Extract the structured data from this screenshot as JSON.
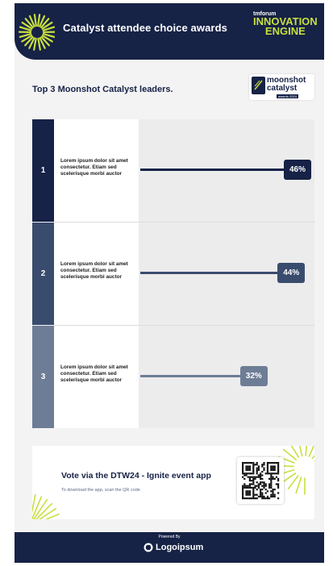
{
  "header": {
    "title": "Catalyst attendee choice awards",
    "brand_small": "tmforum",
    "brand_line1": "INNOVATION",
    "brand_line2": "ENGINE",
    "icon": "starburst-icon"
  },
  "section": {
    "title": "Top 3 Moonshot Catalyst leaders.",
    "badge_line1": "moonshot",
    "badge_line2": "catalyst",
    "badge_line3": "awards 2024"
  },
  "leaders": [
    {
      "rank": "1",
      "text": "Lorem ipsum dolor sit amet consectetur. Etiam sed scelerisque morbi auctor",
      "percent_label": "46%",
      "value": 46,
      "color": "#162246"
    },
    {
      "rank": "2",
      "text": "Lorem ipsum dolor sit amet consectetur. Etiam sed scelerisque morbi auctor",
      "percent_label": "44%",
      "value": 44,
      "color": "#3a4c6e"
    },
    {
      "rank": "3",
      "text": "Lorem ipsum dolor sit amet consectetur. Etiam sed scelerisque morbi auctor",
      "percent_label": "32%",
      "value": 32,
      "color": "#6e7d96"
    }
  ],
  "vote": {
    "title": "Vote via the DTW24 - Ignite event app",
    "subtitle": "To download the app, scan the QR code",
    "qr_icon": "qr-code-icon"
  },
  "footer": {
    "powered_by": "Powered By",
    "logo_text": "Logoipsum",
    "logo_icon": "logo-ring-icon"
  },
  "colors": {
    "navy": "#162246",
    "accent": "#c8df3e"
  }
}
